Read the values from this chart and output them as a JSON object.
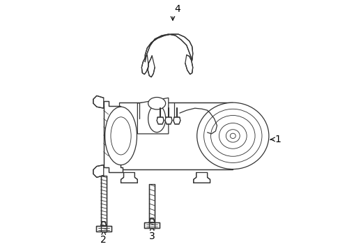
{
  "bg_color": "#ffffff",
  "line_color": "#333333",
  "label_color": "#000000",
  "lw": 0.9,
  "fig_w": 4.89,
  "fig_h": 3.6,
  "dpi": 100
}
